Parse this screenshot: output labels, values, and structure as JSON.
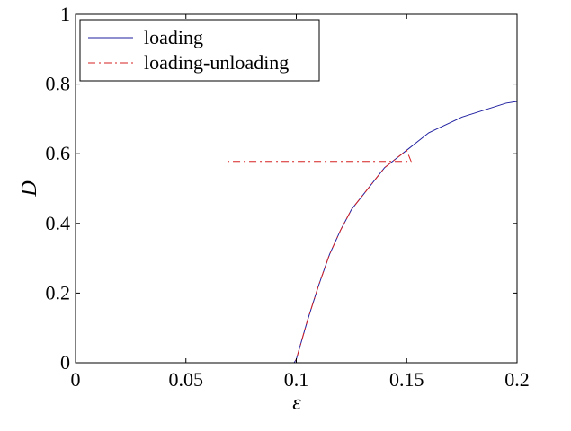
{
  "chart_data": {
    "type": "line",
    "xlabel": "ε",
    "ylabel": "D",
    "xlim": [
      0,
      0.2
    ],
    "ylim": [
      0,
      1
    ],
    "x_ticks": [
      "0",
      "0.05",
      "0.1",
      "0.15",
      "0.2"
    ],
    "y_ticks": [
      "0",
      "0.2",
      "0.4",
      "0.6",
      "0.8",
      "1"
    ],
    "grid": false,
    "legend_position": "top-left",
    "series": [
      {
        "name": "loading",
        "color": "#1f1fa0",
        "style": "solid",
        "x": [
          0,
          0.05,
          0.099,
          0.1,
          0.105,
          0.11,
          0.115,
          0.12,
          0.125,
          0.13,
          0.135,
          0.14,
          0.145,
          0.15,
          0.155,
          0.16,
          0.165,
          0.17,
          0.175,
          0.18,
          0.185,
          0.19,
          0.195,
          0.2
        ],
        "y": [
          0,
          0,
          0,
          0.01,
          0.12,
          0.22,
          0.31,
          0.38,
          0.44,
          0.48,
          0.52,
          0.56,
          0.585,
          0.61,
          0.635,
          0.66,
          0.675,
          0.69,
          0.705,
          0.715,
          0.725,
          0.735,
          0.745,
          0.75
        ]
      },
      {
        "name": "loading-unloading",
        "color": "#d62020",
        "style": "dashdot",
        "x": [
          0,
          0.05,
          0.099,
          0.1,
          0.105,
          0.11,
          0.115,
          0.12,
          0.125,
          0.13,
          0.135,
          0.14,
          0.145,
          0.15,
          0.152,
          0.068
        ],
        "y": [
          0,
          0,
          0,
          0.01,
          0.12,
          0.22,
          0.31,
          0.38,
          0.44,
          0.48,
          0.52,
          0.56,
          0.585,
          0.61,
          0.578,
          0.578
        ]
      }
    ]
  }
}
